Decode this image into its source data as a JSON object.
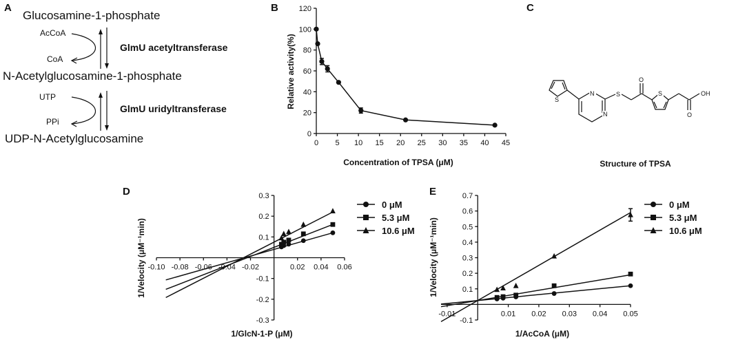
{
  "panelA": {
    "label": "A",
    "compounds": [
      "Glucosamine-1-phosphate",
      "N-Acetylglucosamine-1-phosphate",
      "UDP-N-Acetylglucosamine"
    ],
    "step1": {
      "cofactor_in": "AcCoA",
      "cofactor_out": "CoA",
      "enzyme": "GlmU acetyltransferase"
    },
    "step2": {
      "cofactor_in": "UTP",
      "cofactor_out": "PPi",
      "enzyme": "GlmU uridyltransferase"
    }
  },
  "panelC": {
    "label": "C",
    "caption": "Structure of TPSA",
    "atoms": {
      "s_thiophene1": "S",
      "n_top": "N",
      "n_bottom": "N",
      "s_linker": "S",
      "o_ketone": "O",
      "s_thiophene2": "S",
      "o_acid_carbonyl": "O",
      "oh_acid": "OH"
    }
  },
  "chart_data": [
    {
      "panel": "B",
      "type": "line",
      "title": "",
      "xlabel": "Concentration of TPSA (μM)",
      "ylabel": "Relative activity(%)",
      "xlim": [
        0,
        45
      ],
      "ylim": [
        0,
        120
      ],
      "xticks": [
        0,
        5,
        10,
        15,
        20,
        25,
        30,
        35,
        40,
        45
      ],
      "yticks": [
        0,
        20,
        40,
        60,
        80,
        100,
        120
      ],
      "x": [
        0,
        0.33,
        1.3,
        2.65,
        5.3,
        10.6,
        21.2,
        42.4
      ],
      "values": [
        100,
        86,
        69,
        62,
        49,
        22,
        13,
        8
      ],
      "error": [
        0,
        0,
        3,
        3,
        0,
        2.5,
        0,
        0
      ]
    },
    {
      "panel": "D",
      "type": "scatter",
      "title": "",
      "xlabel": "1/GlcN-1-P (μM)",
      "ylabel": "1/Velocity (μM⁻¹min)",
      "xlim": [
        -0.1,
        0.06
      ],
      "ylim": [
        -0.3,
        0.3
      ],
      "xticks": [
        -0.1,
        -0.08,
        -0.06,
        -0.04,
        -0.02,
        0.02,
        0.04,
        0.06
      ],
      "xtick_labels": [
        "-0.10",
        "-0.08",
        "-0.06",
        "-0.04",
        "-0.02",
        "0.02",
        "0.04",
        "0.06"
      ],
      "yticks": [
        -0.3,
        -0.2,
        -0.1,
        0.1,
        0.2,
        0.3
      ],
      "ytick_labels": [
        "-0.3",
        "-0.2",
        "-0.1",
        "0.1",
        "0.2",
        "0.3"
      ],
      "line_xlim": [
        -0.092,
        0.05
      ],
      "series": [
        {
          "name": "0 μM",
          "marker": "circle",
          "x": [
            0.0063,
            0.0083,
            0.0125,
            0.025,
            0.05
          ],
          "y": [
            0.052,
            0.058,
            0.065,
            0.082,
            0.12
          ],
          "slope": 1.6,
          "intercept": 0.04
        },
        {
          "name": "5.3 μM",
          "marker": "square",
          "x": [
            0.0063,
            0.0083,
            0.0125,
            0.025,
            0.05
          ],
          "y": [
            0.065,
            0.075,
            0.085,
            0.115,
            0.16
          ],
          "slope": 2.2,
          "intercept": 0.05
        },
        {
          "name": "10.6 μM",
          "marker": "triangle",
          "x": [
            0.0063,
            0.0083,
            0.0125,
            0.025,
            0.05
          ],
          "y": [
            0.095,
            0.115,
            0.125,
            0.16,
            0.225
          ],
          "slope": 2.9,
          "intercept": 0.075
        }
      ]
    },
    {
      "panel": "E",
      "type": "scatter",
      "title": "",
      "xlabel": "1/AcCoA (μM)",
      "ylabel": "1/Velocity (μM⁻¹min)",
      "xlim": [
        -0.012,
        0.05
      ],
      "ylim": [
        -0.1,
        0.7
      ],
      "xticks": [
        -0.01,
        0.01,
        0.02,
        0.03,
        0.04,
        0.05
      ],
      "xtick_labels": [
        "-0.01",
        "0.01",
        "0.02",
        "0.03",
        "0.04",
        "0.05"
      ],
      "yticks": [
        -0.1,
        0.1,
        0.2,
        0.3,
        0.4,
        0.5,
        0.6,
        0.7
      ],
      "ytick_labels": [
        "-0.1",
        "0.1",
        "0.2",
        "0.3",
        "0.4",
        "0.5",
        "0.6",
        "0.7"
      ],
      "line_xlim": [
        -0.012,
        0.05
      ],
      "series": [
        {
          "name": "0 μM",
          "marker": "circle",
          "x": [
            0.0063,
            0.0083,
            0.0125,
            0.025,
            0.05
          ],
          "y": [
            0.035,
            0.04,
            0.048,
            0.07,
            0.12
          ],
          "slope": 1.9,
          "intercept": 0.025
        },
        {
          "name": "5.3 μM",
          "marker": "square",
          "x": [
            0.0063,
            0.0083,
            0.0125,
            0.025,
            0.05
          ],
          "y": [
            0.045,
            0.05,
            0.06,
            0.12,
            0.195
          ],
          "slope": 3.3,
          "intercept": 0.025
        },
        {
          "name": "10.6 μM",
          "marker": "triangle",
          "x": [
            0.0063,
            0.0083,
            0.0125,
            0.025,
            0.05
          ],
          "y": [
            0.095,
            0.105,
            0.12,
            0.31,
            0.575
          ],
          "slope": 11.3,
          "intercept": 0.025
        }
      ],
      "error_last": 0.04
    }
  ]
}
